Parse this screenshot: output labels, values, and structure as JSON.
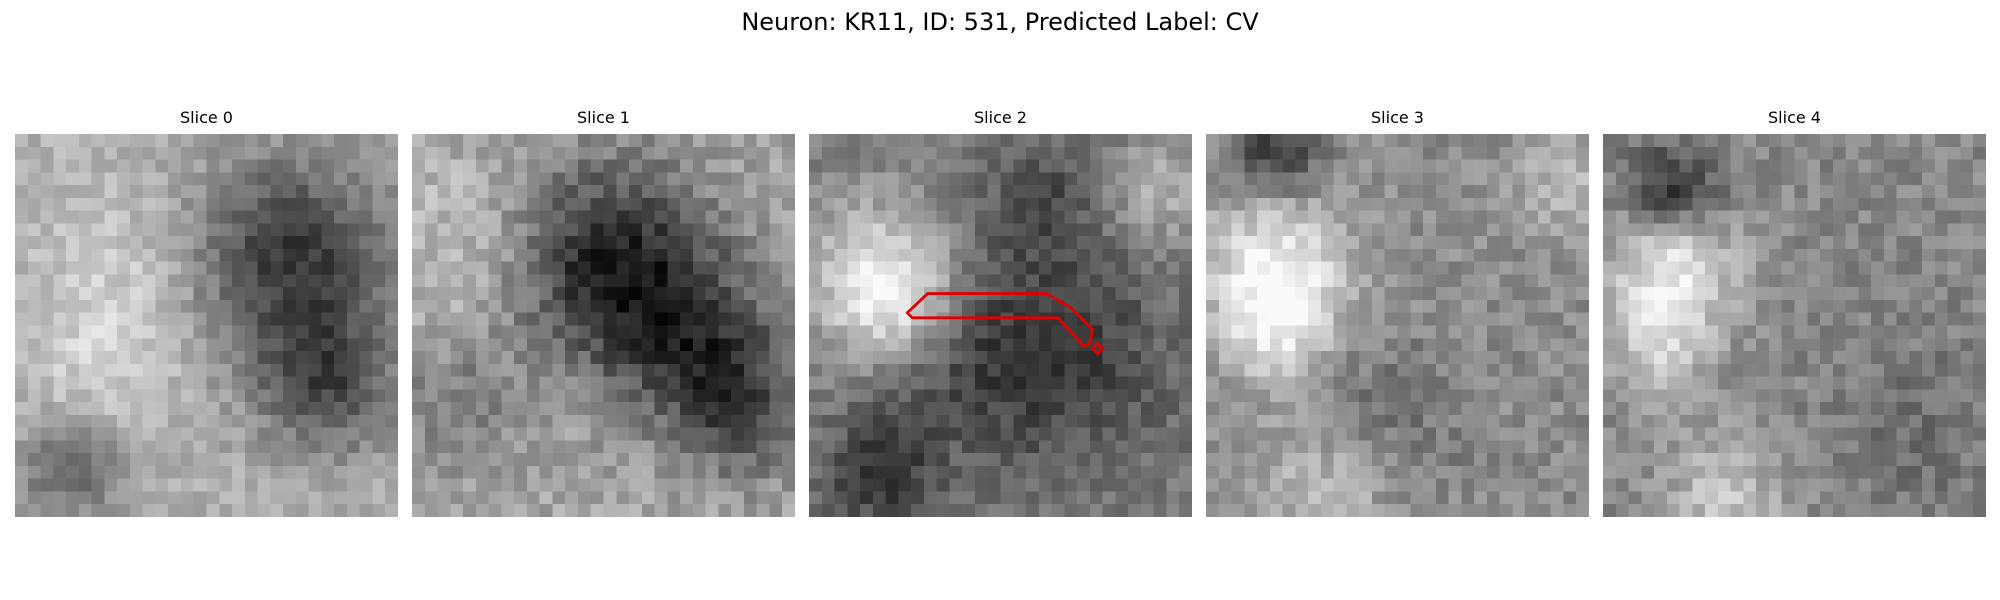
{
  "figure": {
    "title": "Neuron: KR11, ID: 531, Predicted Label: CV"
  },
  "panels": [
    {
      "title": "Slice 0"
    },
    {
      "title": "Slice 1"
    },
    {
      "title": "Slice 2"
    },
    {
      "title": "Slice 3"
    },
    {
      "title": "Slice 4"
    }
  ],
  "image": {
    "colormap": "grayscale",
    "grid_cells": 30
  },
  "annotation": {
    "panel_index": 2,
    "shape": "contour outline",
    "color": "#e00000"
  }
}
